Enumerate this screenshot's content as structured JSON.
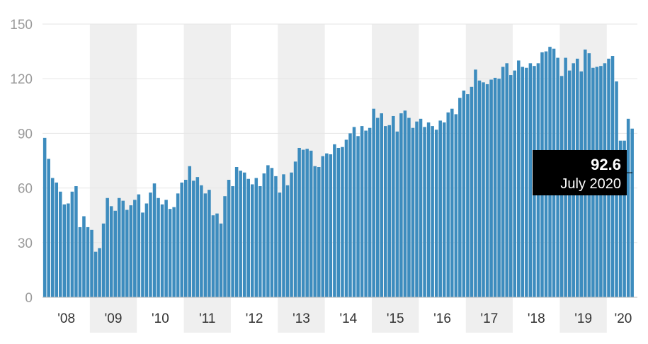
{
  "chart_data": {
    "type": "bar",
    "title": "",
    "xlabel": "",
    "ylabel": "",
    "ylim": [
      0,
      150
    ],
    "yticks": [
      0,
      30,
      60,
      90,
      120,
      150
    ],
    "grid": true,
    "legend": "none",
    "start": "2008-01",
    "x_tick_labels": [
      "'08",
      "'09",
      "'10",
      "'11",
      "'12",
      "'13",
      "'14",
      "'15",
      "'16",
      "'17",
      "'18",
      "'19",
      "'20"
    ],
    "shaded_years": [
      "'09",
      "'11",
      "'13",
      "'15",
      "'17",
      "'19"
    ],
    "values": [
      87.5,
      76.0,
      65.5,
      63.0,
      58.0,
      51.0,
      51.5,
      58.0,
      61.0,
      38.5,
      44.5,
      38.5,
      37.0,
      25.0,
      27.0,
      40.5,
      54.5,
      50.0,
      47.5,
      54.5,
      53.0,
      48.0,
      50.5,
      53.5,
      56.5,
      46.5,
      51.5,
      57.5,
      62.5,
      54.5,
      51.0,
      53.5,
      48.5,
      49.5,
      57.0,
      63.0,
      64.5,
      72.0,
      64.0,
      66.0,
      61.5,
      57.0,
      59.0,
      45.0,
      46.0,
      40.5,
      55.5,
      64.5,
      61.0,
      71.5,
      69.5,
      68.5,
      65.0,
      62.0,
      65.5,
      61.0,
      68.0,
      72.5,
      71.0,
      66.5,
      57.5,
      67.5,
      61.5,
      68.5,
      74.5,
      82.0,
      81.0,
      81.5,
      80.5,
      72.0,
      71.5,
      77.5,
      79.0,
      78.5,
      84.0,
      82.0,
      82.5,
      86.5,
      90.0,
      93.5,
      88.5,
      94.0,
      91.5,
      93.0,
      103.5,
      98.5,
      101.0,
      94.0,
      94.5,
      99.5,
      91.0,
      101.0,
      102.5,
      98.5,
      93.0,
      96.5,
      98.0,
      93.5,
      96.0,
      94.0,
      92.0,
      97.0,
      96.0,
      101.5,
      103.5,
      100.5,
      109.5,
      113.5,
      111.5,
      115.5,
      125.0,
      119.0,
      118.0,
      117.0,
      119.5,
      120.5,
      120.0,
      126.5,
      128.5,
      122.0,
      124.5,
      130.0,
      126.5,
      126.0,
      128.5,
      127.0,
      128.5,
      134.5,
      135.0,
      137.5,
      136.5,
      131.5,
      121.5,
      131.5,
      124.5,
      128.5,
      131.0,
      124.0,
      136.0,
      134.0,
      126.0,
      126.5,
      127.0,
      128.5,
      131.0,
      132.5,
      118.5,
      86.0,
      86.0,
      98.0,
      92.6
    ],
    "callout": {
      "value": "92.6",
      "label": "July 2020"
    }
  }
}
